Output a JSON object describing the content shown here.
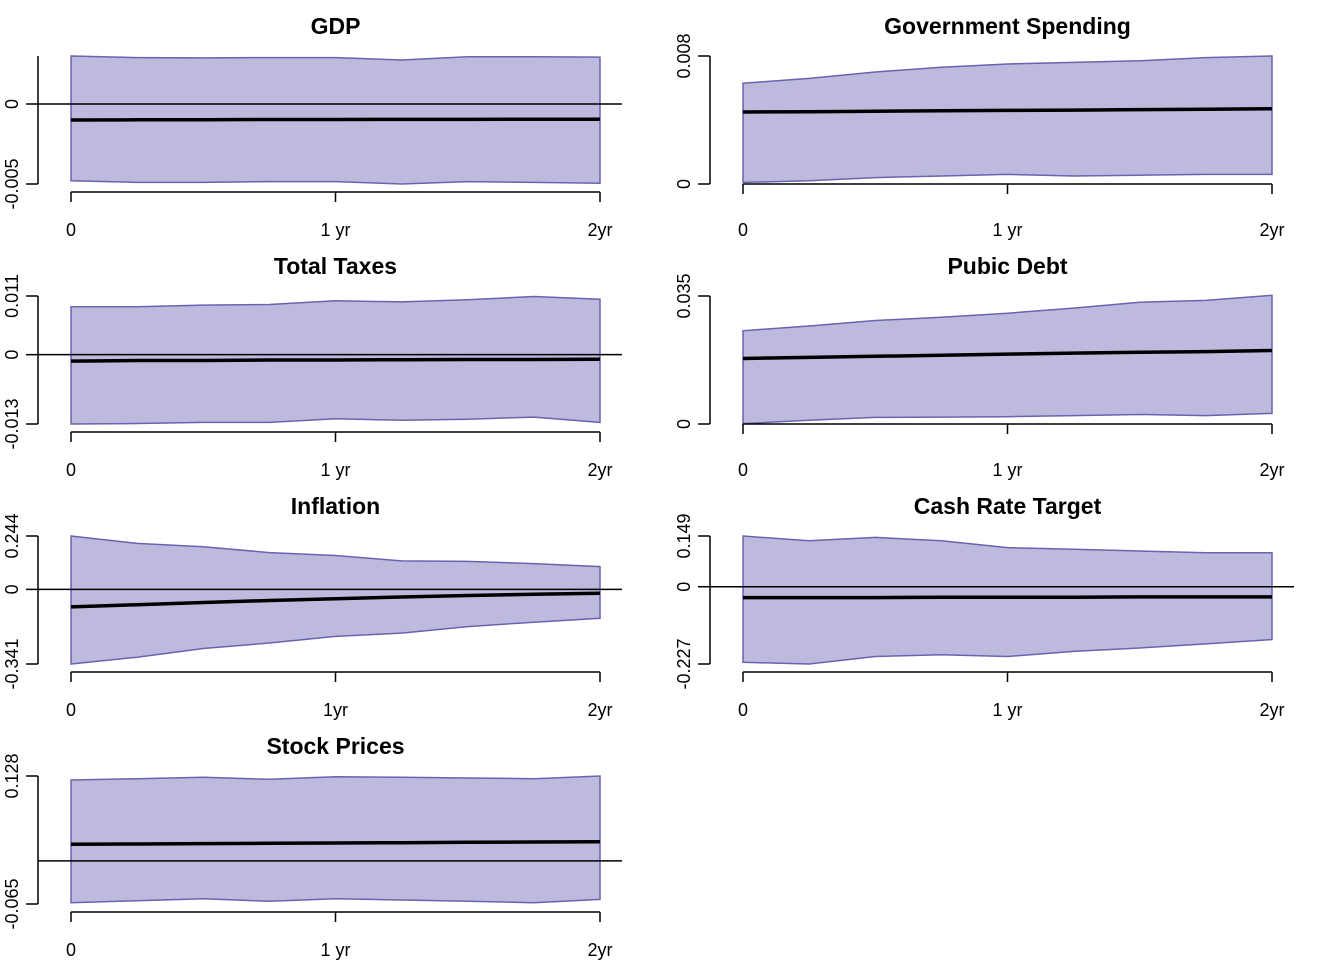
{
  "colors": {
    "band_fill": "#bdbadd",
    "band_edge": "#6a63b0",
    "line": "#000000",
    "background": "#ffffff"
  },
  "chart_data": [
    {
      "type": "area",
      "title": "GDP",
      "x": [
        0,
        0.25,
        0.5,
        0.75,
        1,
        1.25,
        1.5,
        1.75,
        2
      ],
      "xticks": [
        0,
        1,
        2
      ],
      "xtick_labels": [
        "0",
        "1 yr",
        "2yr"
      ],
      "ylim": [
        -0.005,
        0.003
      ],
      "yticks": [
        -0.005,
        0
      ],
      "ytick_labels": [
        "-0.005",
        "0"
      ],
      "zero_line": true,
      "series": [
        {
          "role": "upper",
          "values": [
            0.003,
            0.0029,
            0.00288,
            0.0029,
            0.0029,
            0.00275,
            0.00295,
            0.00295,
            0.00293
          ]
        },
        {
          "role": "median",
          "values": [
            -0.001,
            -0.00099,
            -0.00098,
            -0.00097,
            -0.00097,
            -0.00096,
            -0.00096,
            -0.00095,
            -0.00095
          ]
        },
        {
          "role": "lower",
          "values": [
            -0.0048,
            -0.0049,
            -0.0049,
            -0.00485,
            -0.00485,
            -0.005,
            -0.00485,
            -0.0049,
            -0.00495
          ]
        }
      ]
    },
    {
      "type": "area",
      "title": "Government Spending",
      "x": [
        0,
        0.25,
        0.5,
        0.75,
        1,
        1.25,
        1.5,
        1.75,
        2
      ],
      "xticks": [
        0,
        1,
        2
      ],
      "xtick_labels": [
        "0",
        "1 yr",
        "2yr"
      ],
      "ylim": [
        0,
        0.008
      ],
      "yticks": [
        0,
        0.008
      ],
      "ytick_labels": [
        "0",
        "0.008"
      ],
      "zero_line": false,
      "series": [
        {
          "role": "upper",
          "values": [
            0.0063,
            0.0066,
            0.007,
            0.0073,
            0.0075,
            0.0076,
            0.0077,
            0.0079,
            0.008
          ]
        },
        {
          "role": "median",
          "values": [
            0.0045,
            0.00452,
            0.00455,
            0.00458,
            0.0046,
            0.00462,
            0.00465,
            0.00467,
            0.0047
          ]
        },
        {
          "role": "lower",
          "values": [
            0.0001,
            0.0002,
            0.0004,
            0.0005,
            0.0006,
            0.0005,
            0.00055,
            0.0006,
            0.0006
          ]
        }
      ]
    },
    {
      "type": "area",
      "title": "Total Taxes",
      "x": [
        0,
        0.25,
        0.5,
        0.75,
        1,
        1.25,
        1.5,
        1.75,
        2
      ],
      "xticks": [
        0,
        1,
        2
      ],
      "xtick_labels": [
        "0",
        "1 yr",
        "2yr"
      ],
      "ylim": [
        -0.013,
        0.011
      ],
      "yticks": [
        -0.013,
        0,
        0.011
      ],
      "ytick_labels": [
        "-0.013",
        "0",
        "0.011"
      ],
      "zero_line": true,
      "series": [
        {
          "role": "upper",
          "values": [
            0.009,
            0.009,
            0.0093,
            0.0094,
            0.0101,
            0.0099,
            0.0103,
            0.0109,
            0.0104
          ]
        },
        {
          "role": "median",
          "values": [
            -0.0012,
            -0.0011,
            -0.0011,
            -0.001,
            -0.001,
            -0.00095,
            -0.0009,
            -0.0009,
            -0.00085
          ]
        },
        {
          "role": "lower",
          "values": [
            -0.013,
            -0.0129,
            -0.0127,
            -0.0127,
            -0.012,
            -0.0123,
            -0.0121,
            -0.0117,
            -0.0127
          ]
        }
      ]
    },
    {
      "type": "area",
      "title": "Pubic Debt",
      "x": [
        0,
        0.25,
        0.5,
        0.75,
        1,
        1.25,
        1.5,
        1.75,
        2
      ],
      "xticks": [
        0,
        1,
        2
      ],
      "xtick_labels": [
        "0",
        "1 yr",
        "2yr"
      ],
      "ylim": [
        0,
        0.035
      ],
      "yticks": [
        0,
        0.035
      ],
      "ytick_labels": [
        "0",
        "0.035"
      ],
      "zero_line": false,
      "series": [
        {
          "role": "upper",
          "values": [
            0.0255,
            0.0268,
            0.0283,
            0.0292,
            0.0303,
            0.0317,
            0.0333,
            0.0338,
            0.0352
          ]
        },
        {
          "role": "median",
          "values": [
            0.0179,
            0.0182,
            0.0185,
            0.0188,
            0.0191,
            0.0194,
            0.0196,
            0.0198,
            0.0201
          ]
        },
        {
          "role": "lower",
          "values": [
            0.0001,
            0.001,
            0.0018,
            0.0019,
            0.002,
            0.0023,
            0.0026,
            0.0023,
            0.0029
          ]
        }
      ]
    },
    {
      "type": "area",
      "title": "Inflation",
      "x": [
        0,
        0.25,
        0.5,
        0.75,
        1,
        1.25,
        1.5,
        1.75,
        2
      ],
      "xticks": [
        0,
        1,
        2
      ],
      "xtick_labels": [
        "0",
        "1yr",
        "2yr"
      ],
      "ylim": [
        -0.341,
        0.244
      ],
      "yticks": [
        -0.341,
        0,
        0.244
      ],
      "ytick_labels": [
        "-0.341",
        "0",
        "0.244"
      ],
      "zero_line": true,
      "series": [
        {
          "role": "upper",
          "values": [
            0.244,
            0.21,
            0.195,
            0.168,
            0.155,
            0.13,
            0.128,
            0.118,
            0.104
          ]
        },
        {
          "role": "median",
          "values": [
            -0.08,
            -0.07,
            -0.06,
            -0.051,
            -0.043,
            -0.035,
            -0.028,
            -0.022,
            -0.018
          ]
        },
        {
          "role": "lower",
          "values": [
            -0.341,
            -0.31,
            -0.27,
            -0.245,
            -0.215,
            -0.2,
            -0.17,
            -0.15,
            -0.132
          ]
        }
      ]
    },
    {
      "type": "area",
      "title": "Cash Rate Target",
      "x": [
        0,
        0.25,
        0.5,
        0.75,
        1,
        1.25,
        1.5,
        1.75,
        2
      ],
      "xticks": [
        0,
        1,
        2
      ],
      "xtick_labels": [
        "0",
        "1 yr",
        "2yr"
      ],
      "ylim": [
        -0.227,
        0.149
      ],
      "yticks": [
        -0.227,
        0,
        0.149
      ],
      "ytick_labels": [
        "-0.227",
        "0",
        "0.149"
      ],
      "zero_line": true,
      "series": [
        {
          "role": "upper",
          "values": [
            0.149,
            0.135,
            0.145,
            0.135,
            0.115,
            0.11,
            0.105,
            0.1,
            0.1
          ]
        },
        {
          "role": "median",
          "values": [
            -0.032,
            -0.032,
            -0.032,
            -0.031,
            -0.031,
            -0.031,
            -0.03,
            -0.03,
            -0.03
          ]
        },
        {
          "role": "lower",
          "values": [
            -0.222,
            -0.227,
            -0.205,
            -0.2,
            -0.205,
            -0.19,
            -0.18,
            -0.168,
            -0.155
          ]
        }
      ]
    },
    {
      "type": "area",
      "title": "Stock Prices",
      "x": [
        0,
        0.25,
        0.5,
        0.75,
        1,
        1.25,
        1.5,
        1.75,
        2
      ],
      "xticks": [
        0,
        1,
        2
      ],
      "xtick_labels": [
        "0",
        "1 yr",
        "2yr"
      ],
      "ylim": [
        -0.065,
        0.128
      ],
      "yticks": [
        -0.065,
        0.128
      ],
      "ytick_labels": [
        "-0.065",
        "0.128"
      ],
      "zero_line": true,
      "series": [
        {
          "role": "upper",
          "values": [
            0.122,
            0.124,
            0.126,
            0.123,
            0.127,
            0.126,
            0.125,
            0.124,
            0.128
          ]
        },
        {
          "role": "median",
          "values": [
            0.025,
            0.0255,
            0.026,
            0.0265,
            0.027,
            0.0275,
            0.028,
            0.0285,
            0.029
          ]
        },
        {
          "role": "lower",
          "values": [
            -0.063,
            -0.06,
            -0.057,
            -0.061,
            -0.057,
            -0.059,
            -0.061,
            -0.063,
            -0.058
          ]
        }
      ]
    }
  ]
}
